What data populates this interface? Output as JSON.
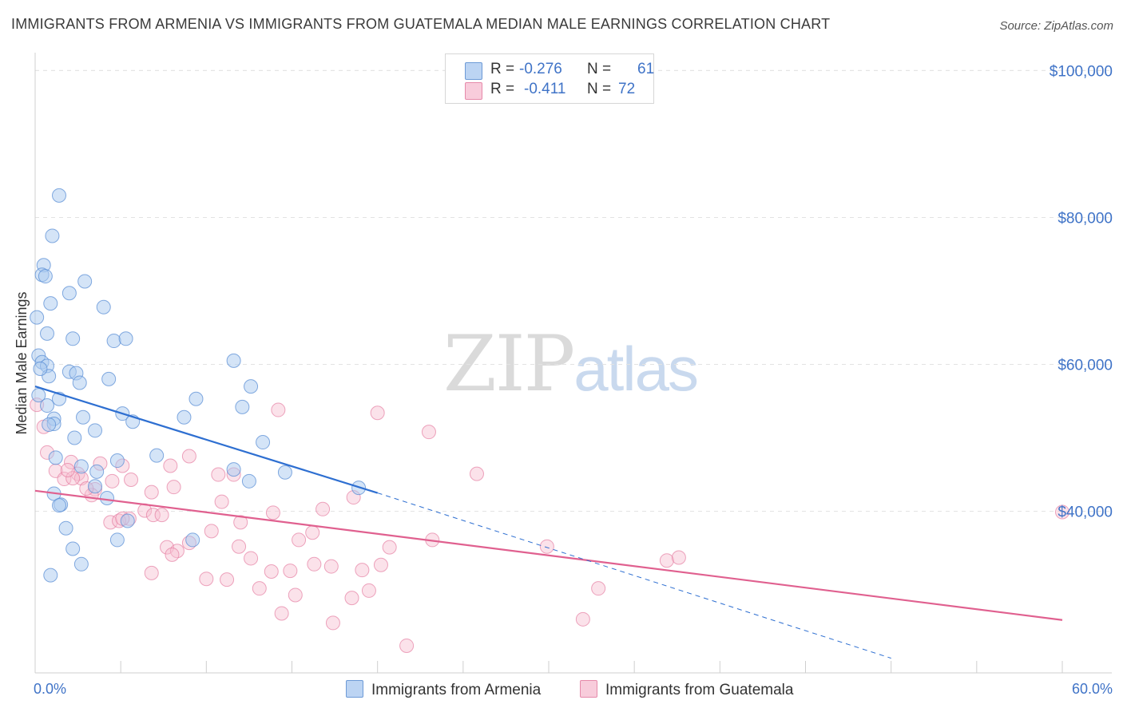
{
  "header": {
    "title": "IMMIGRANTS FROM ARMENIA VS IMMIGRANTS FROM GUATEMALA MEDIAN MALE EARNINGS CORRELATION CHART",
    "source": "Source: ZipAtlas.com"
  },
  "watermark": {
    "zip": "ZIP",
    "atlas": "atlas"
  },
  "legend": {
    "rows": [
      {
        "r_label": "R =",
        "r_value": "-0.276",
        "n_label": "N =",
        "n_value": "61"
      },
      {
        "r_label": "R =",
        "r_value": "-0.411",
        "n_label": "N =",
        "n_value": "72"
      }
    ]
  },
  "bottom_legend": {
    "armenia": "Immigrants from Armenia",
    "guatemala": "Immigrants from Guatemala"
  },
  "colors": {
    "armenia_fill": "#a9c9f0",
    "armenia_stroke": "#5b8fd6",
    "armenia_line": "#2e6fd1",
    "guatemala_fill": "#f6bfd1",
    "guatemala_stroke": "#e67fa3",
    "guatemala_line": "#e0608f",
    "axis_text": "#3f73c7",
    "grid": "#e3e3e3"
  },
  "chart_data": {
    "type": "scatter",
    "title": "IMMIGRANTS FROM ARMENIA VS IMMIGRANTS FROM GUATEMALA MEDIAN MALE EARNINGS CORRELATION CHART",
    "xlabel": "",
    "ylabel": "Median Male Earnings",
    "xlim": [
      0,
      60
    ],
    "ylim": [
      18000,
      102000
    ],
    "x_tick_labels": [
      "0.0%",
      "60.0%"
    ],
    "y_ticks": [
      40000,
      60000,
      80000,
      100000
    ],
    "y_tick_labels": [
      "$40,000",
      "$60,000",
      "$80,000",
      "$100,000"
    ],
    "grid": true,
    "legend_position": "top-center",
    "series": [
      {
        "name": "Immigrants from Armenia",
        "R": -0.276,
        "N": 61,
        "points": [
          [
            1.4,
            83000
          ],
          [
            1.0,
            77500
          ],
          [
            0.5,
            73500
          ],
          [
            0.4,
            72200
          ],
          [
            0.6,
            72000
          ],
          [
            2.9,
            71300
          ],
          [
            2.0,
            69700
          ],
          [
            0.9,
            68300
          ],
          [
            4.0,
            67800
          ],
          [
            0.1,
            66400
          ],
          [
            0.7,
            64200
          ],
          [
            2.2,
            63500
          ],
          [
            4.6,
            63200
          ],
          [
            5.3,
            63500
          ],
          [
            0.2,
            61200
          ],
          [
            11.6,
            60500
          ],
          [
            0.4,
            60300
          ],
          [
            0.7,
            59800
          ],
          [
            2.0,
            59000
          ],
          [
            2.4,
            58800
          ],
          [
            0.8,
            58400
          ],
          [
            2.6,
            57500
          ],
          [
            4.3,
            58000
          ],
          [
            12.6,
            57000
          ],
          [
            0.2,
            55800
          ],
          [
            9.4,
            55300
          ],
          [
            1.4,
            55300
          ],
          [
            0.7,
            54400
          ],
          [
            12.1,
            54200
          ],
          [
            5.1,
            53300
          ],
          [
            8.7,
            52800
          ],
          [
            2.8,
            52800
          ],
          [
            5.7,
            52200
          ],
          [
            1.1,
            52600
          ],
          [
            1.1,
            51900
          ],
          [
            0.8,
            51800
          ],
          [
            3.5,
            51000
          ],
          [
            2.3,
            50000
          ],
          [
            13.3,
            49400
          ],
          [
            7.1,
            47600
          ],
          [
            1.2,
            47300
          ],
          [
            4.8,
            46900
          ],
          [
            2.7,
            46100
          ],
          [
            3.6,
            45400
          ],
          [
            11.6,
            45700
          ],
          [
            14.6,
            45300
          ],
          [
            12.5,
            44100
          ],
          [
            3.5,
            43400
          ],
          [
            18.9,
            43200
          ],
          [
            1.1,
            42400
          ],
          [
            4.2,
            41800
          ],
          [
            1.5,
            40900
          ],
          [
            1.4,
            40800
          ],
          [
            5.4,
            38700
          ],
          [
            1.8,
            37700
          ],
          [
            4.8,
            36100
          ],
          [
            9.2,
            36100
          ],
          [
            2.2,
            34900
          ],
          [
            2.7,
            32800
          ],
          [
            0.9,
            31300
          ],
          [
            0.3,
            59400
          ]
        ]
      },
      {
        "name": "Immigrants from Guatemala",
        "R": -0.411,
        "N": 72,
        "points": [
          [
            0.1,
            54500
          ],
          [
            0.5,
            51500
          ],
          [
            0.7,
            48000
          ],
          [
            2.1,
            46700
          ],
          [
            1.2,
            45500
          ],
          [
            3.8,
            46500
          ],
          [
            5.1,
            46200
          ],
          [
            9.0,
            47500
          ],
          [
            7.9,
            46200
          ],
          [
            2.5,
            45100
          ],
          [
            1.7,
            44400
          ],
          [
            2.7,
            44500
          ],
          [
            4.5,
            44100
          ],
          [
            5.6,
            44300
          ],
          [
            10.7,
            45000
          ],
          [
            11.6,
            45000
          ],
          [
            8.1,
            43300
          ],
          [
            3.5,
            43000
          ],
          [
            6.8,
            42600
          ],
          [
            3.3,
            42200
          ],
          [
            18.6,
            41900
          ],
          [
            10.9,
            41300
          ],
          [
            14.2,
            53800
          ],
          [
            20.0,
            53400
          ],
          [
            23.0,
            50800
          ],
          [
            25.8,
            45100
          ],
          [
            16.8,
            40300
          ],
          [
            13.9,
            39800
          ],
          [
            6.4,
            40100
          ],
          [
            6.9,
            39500
          ],
          [
            7.4,
            39500
          ],
          [
            5.5,
            39000
          ],
          [
            4.4,
            38500
          ],
          [
            4.9,
            38700
          ],
          [
            12.0,
            38500
          ],
          [
            10.3,
            37300
          ],
          [
            16.2,
            37100
          ],
          [
            15.4,
            36100
          ],
          [
            9.0,
            35700
          ],
          [
            7.7,
            35100
          ],
          [
            8.3,
            34600
          ],
          [
            11.9,
            35200
          ],
          [
            12.6,
            33600
          ],
          [
            8.0,
            34100
          ],
          [
            23.2,
            36100
          ],
          [
            20.7,
            35100
          ],
          [
            29.9,
            35200
          ],
          [
            36.9,
            33300
          ],
          [
            37.6,
            33700
          ],
          [
            13.8,
            31800
          ],
          [
            14.9,
            31900
          ],
          [
            16.3,
            32800
          ],
          [
            17.3,
            32500
          ],
          [
            19.1,
            32000
          ],
          [
            20.2,
            32700
          ],
          [
            6.8,
            31600
          ],
          [
            10.0,
            30800
          ],
          [
            11.2,
            30700
          ],
          [
            13.1,
            29500
          ],
          [
            18.5,
            28200
          ],
          [
            19.5,
            29200
          ],
          [
            15.2,
            28600
          ],
          [
            32.9,
            29500
          ],
          [
            14.4,
            26100
          ],
          [
            32.0,
            25300
          ],
          [
            17.4,
            24800
          ],
          [
            21.7,
            21700
          ],
          [
            60.0,
            39900
          ],
          [
            5.1,
            39000
          ],
          [
            3.0,
            43100
          ],
          [
            2.2,
            44500
          ],
          [
            1.9,
            45600
          ]
        ]
      }
    ],
    "trend_lines": [
      {
        "series": "Immigrants from Armenia",
        "x": [
          0,
          20
        ],
        "y": [
          57000,
          42500
        ],
        "extended_dashed_to": [
          50,
          20000
        ]
      },
      {
        "series": "Immigrants from Guatemala",
        "x": [
          0,
          60
        ],
        "y": [
          42800,
          25200
        ]
      }
    ]
  }
}
